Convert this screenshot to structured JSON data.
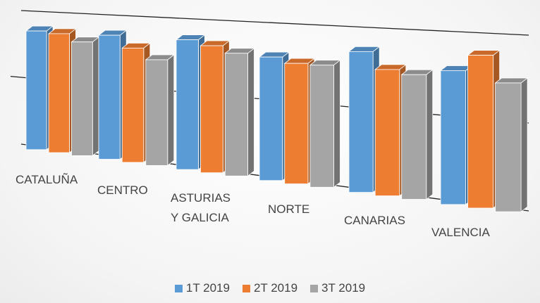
{
  "chart_data": {
    "type": "bar3d",
    "categories": [
      "CATALUÑA",
      "CENTRO",
      "ASTURIAS\nY GALICIA",
      "NORTE",
      "CANARIAS",
      "VALENCIA"
    ],
    "series": [
      {
        "name": "1T 2019",
        "color": "#5b9bd5",
        "values": [
          88,
          88,
          88,
          80,
          87,
          79
        ]
      },
      {
        "name": "2T 2019",
        "color": "#ed7d31",
        "values": [
          87,
          80,
          85,
          77,
          77,
          89
        ]
      },
      {
        "name": "3T 2019",
        "color": "#a5a5a5",
        "values": [
          82,
          73,
          81,
          77,
          75,
          74
        ]
      }
    ],
    "ylim": [
      0,
      100
    ],
    "yticks": [
      0,
      50,
      100
    ],
    "grid": true
  }
}
